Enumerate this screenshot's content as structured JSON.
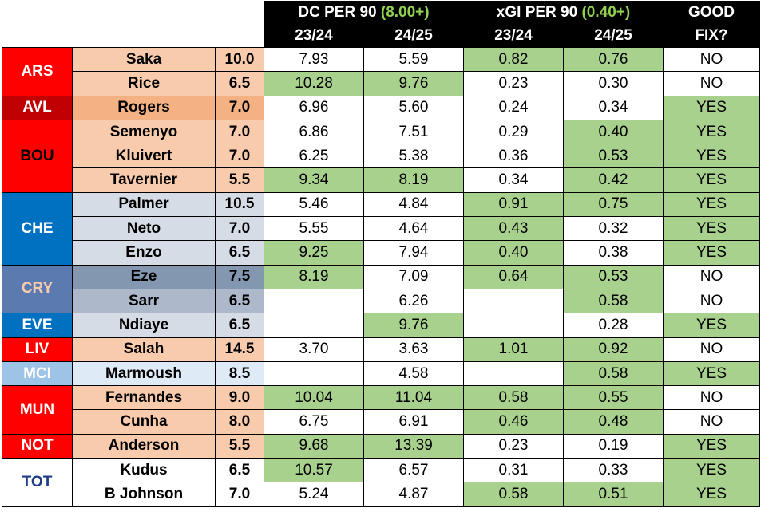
{
  "header": {
    "dc_title": "DC PER 90",
    "dc_threshold": "(8.00+)",
    "xgi_title": "xGI PER 90",
    "xgi_threshold": "(0.40+)",
    "good_fix_line1": "GOOD",
    "good_fix_line2": "FIX?",
    "season1": "23/24",
    "season2": "24/25"
  },
  "colors": {
    "green_highlight": "#a9d18e",
    "header_bg": "#000000"
  },
  "teams": [
    {
      "code": "ARS",
      "bg": "#ff0000",
      "color": "#ffffff",
      "players": [
        {
          "name": "Saka",
          "price": "10.0",
          "pbg": "#f8cbad",
          "dc1": "7.93",
          "dc2": "5.59",
          "x1": "0.82",
          "x2": "0.76",
          "fix": "NO",
          "g": [
            false,
            false,
            true,
            true,
            false
          ]
        },
        {
          "name": "Rice",
          "price": "6.5",
          "pbg": "#f8cbad",
          "dc1": "10.28",
          "dc2": "9.76",
          "x1": "0.23",
          "x2": "0.30",
          "fix": "NO",
          "g": [
            true,
            true,
            false,
            false,
            false
          ]
        }
      ]
    },
    {
      "code": "AVL",
      "bg": "#c00000",
      "color": "#ffffff",
      "players": [
        {
          "name": "Rogers",
          "price": "7.0",
          "pbg": "#f4b183",
          "dc1": "6.96",
          "dc2": "5.60",
          "x1": "0.24",
          "x2": "0.34",
          "fix": "YES",
          "g": [
            false,
            false,
            false,
            false,
            true
          ]
        }
      ]
    },
    {
      "code": "BOU",
      "bg": "#ff0000",
      "color": "#000000",
      "players": [
        {
          "name": "Semenyo",
          "price": "7.0",
          "pbg": "#f8cbad",
          "dc1": "6.86",
          "dc2": "7.51",
          "x1": "0.29",
          "x2": "0.40",
          "fix": "YES",
          "g": [
            false,
            false,
            false,
            true,
            true
          ]
        },
        {
          "name": "Kluivert",
          "price": "7.0",
          "pbg": "#f8cbad",
          "dc1": "6.25",
          "dc2": "5.38",
          "x1": "0.36",
          "x2": "0.53",
          "fix": "YES",
          "g": [
            false,
            false,
            false,
            true,
            true
          ]
        },
        {
          "name": "Tavernier",
          "price": "5.5",
          "pbg": "#f8cbad",
          "dc1": "9.34",
          "dc2": "8.19",
          "x1": "0.34",
          "x2": "0.42",
          "fix": "YES",
          "g": [
            true,
            true,
            false,
            true,
            true
          ]
        }
      ]
    },
    {
      "code": "CHE",
      "bg": "#0070c0",
      "color": "#ffffff",
      "players": [
        {
          "name": "Palmer",
          "price": "10.5",
          "pbg": "#d6dce5",
          "dc1": "5.46",
          "dc2": "4.84",
          "x1": "0.91",
          "x2": "0.75",
          "fix": "YES",
          "g": [
            false,
            false,
            true,
            true,
            true
          ]
        },
        {
          "name": "Neto",
          "price": "7.0",
          "pbg": "#d6dce5",
          "dc1": "5.55",
          "dc2": "4.64",
          "x1": "0.43",
          "x2": "0.32",
          "fix": "YES",
          "g": [
            false,
            false,
            true,
            false,
            true
          ]
        },
        {
          "name": "Enzo",
          "price": "6.5",
          "pbg": "#d6dce5",
          "dc1": "9.25",
          "dc2": "7.94",
          "x1": "0.40",
          "x2": "0.38",
          "fix": "YES",
          "g": [
            true,
            false,
            true,
            false,
            true
          ]
        }
      ]
    },
    {
      "code": "CRY",
      "bg": "#5b7bb0",
      "color": "#f8cbad",
      "players": [
        {
          "name": "Eze",
          "price": "7.5",
          "pbg": "#8497b0",
          "dc1": "8.19",
          "dc2": "7.09",
          "x1": "0.64",
          "x2": "0.53",
          "fix": "NO",
          "g": [
            true,
            false,
            true,
            true,
            false
          ]
        },
        {
          "name": "Sarr",
          "price": "6.5",
          "pbg": "#adb9ca",
          "dc1": "",
          "dc2": "6.26",
          "x1": "",
          "x2": "0.58",
          "fix": "NO",
          "g": [
            false,
            false,
            false,
            true,
            false
          ]
        }
      ]
    },
    {
      "code": "EVE",
      "bg": "#0070c0",
      "color": "#ffffff",
      "players": [
        {
          "name": "Ndiaye",
          "price": "6.5",
          "pbg": "#d6dce5",
          "dc1": "",
          "dc2": "9.76",
          "x1": "",
          "x2": "0.28",
          "fix": "YES",
          "g": [
            false,
            true,
            false,
            false,
            true
          ]
        }
      ]
    },
    {
      "code": "LIV",
      "bg": "#ff0000",
      "color": "#ffffff",
      "players": [
        {
          "name": "Salah",
          "price": "14.5",
          "pbg": "#f8cbad",
          "dc1": "3.70",
          "dc2": "3.63",
          "x1": "1.01",
          "x2": "0.92",
          "fix": "NO",
          "g": [
            false,
            false,
            true,
            true,
            false
          ]
        }
      ]
    },
    {
      "code": "MCI",
      "bg": "#9dc3e6",
      "color": "#ffffff",
      "players": [
        {
          "name": "Marmoush",
          "price": "8.5",
          "pbg": "#deebf7",
          "dc1": "",
          "dc2": "4.58",
          "x1": "",
          "x2": "0.58",
          "fix": "YES",
          "g": [
            false,
            false,
            false,
            true,
            true
          ]
        }
      ]
    },
    {
      "code": "MUN",
      "bg": "#ff0000",
      "color": "#ffffff",
      "players": [
        {
          "name": "Fernandes",
          "price": "9.0",
          "pbg": "#f8cbad",
          "dc1": "10.04",
          "dc2": "11.04",
          "x1": "0.58",
          "x2": "0.55",
          "fix": "NO",
          "g": [
            true,
            true,
            true,
            true,
            false
          ]
        },
        {
          "name": "Cunha",
          "price": "8.0",
          "pbg": "#f8cbad",
          "dc1": "6.75",
          "dc2": "6.91",
          "x1": "0.46",
          "x2": "0.48",
          "fix": "NO",
          "g": [
            false,
            false,
            true,
            true,
            false
          ]
        }
      ]
    },
    {
      "code": "NOT",
      "bg": "#ff0000",
      "color": "#ffffff",
      "players": [
        {
          "name": "Anderson",
          "price": "5.5",
          "pbg": "#f8cbad",
          "dc1": "9.68",
          "dc2": "13.39",
          "x1": "0.23",
          "x2": "0.19",
          "fix": "YES",
          "g": [
            true,
            true,
            false,
            false,
            true
          ]
        }
      ]
    },
    {
      "code": "TOT",
      "bg": "#ffffff",
      "color": "#1f3c88",
      "players": [
        {
          "name": "Kudus",
          "price": "6.5",
          "pbg": "#ffffff",
          "dc1": "10.57",
          "dc2": "6.57",
          "x1": "0.31",
          "x2": "0.33",
          "fix": "YES",
          "g": [
            true,
            false,
            false,
            false,
            true
          ]
        },
        {
          "name": "B Johnson",
          "price": "7.0",
          "pbg": "#ffffff",
          "dc1": "5.24",
          "dc2": "4.87",
          "x1": "0.58",
          "x2": "0.51",
          "fix": "YES",
          "g": [
            false,
            false,
            true,
            true,
            true
          ]
        }
      ]
    }
  ]
}
